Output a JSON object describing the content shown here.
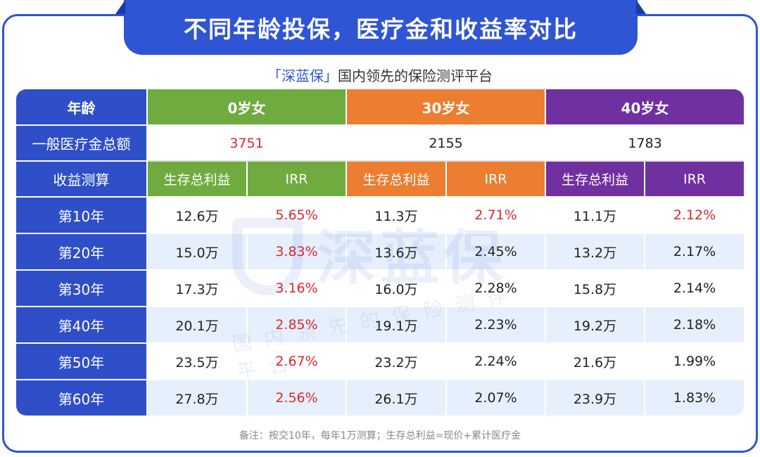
{
  "title": "不同年龄投保，医疗金和收益率对比",
  "subtitle": {
    "brand": "「深蓝保」",
    "text": "国内领先的保险测评平台"
  },
  "table": {
    "header": [
      "年龄",
      "0岁女",
      "30岁女",
      "40岁女"
    ],
    "medical_total": {
      "label": "一般医疗金总额",
      "values": [
        "3751",
        "2155",
        "1783"
      ]
    },
    "sub_header": {
      "label": "收益测算",
      "cols": [
        "生存总利益",
        "IRR",
        "生存总利益",
        "IRR",
        "生存总利益",
        "IRR"
      ]
    },
    "rows": [
      {
        "label": "第10年",
        "values": [
          "12.6万",
          "5.65%",
          "11.3万",
          "2.71%",
          "11.1万",
          "2.12%"
        ]
      },
      {
        "label": "第20年",
        "values": [
          "15.0万",
          "3.83%",
          "13.6万",
          "2.45%",
          "13.2万",
          "2.17%"
        ]
      },
      {
        "label": "第30年",
        "values": [
          "17.3万",
          "3.16%",
          "16.0万",
          "2.28%",
          "15.8万",
          "2.14%"
        ]
      },
      {
        "label": "第40年",
        "values": [
          "20.1万",
          "2.85%",
          "19.1万",
          "2.23%",
          "19.2万",
          "2.18%"
        ]
      },
      {
        "label": "第50年",
        "values": [
          "23.5万",
          "2.67%",
          "23.2万",
          "2.24%",
          "21.6万",
          "1.99%"
        ]
      },
      {
        "label": "第60年",
        "values": [
          "27.8万",
          "2.56%",
          "26.1万",
          "2.07%",
          "23.9万",
          "1.83%"
        ]
      }
    ]
  },
  "watermark": {
    "main": "深蓝保",
    "sub": "国内领先的保险测评平台"
  },
  "note": "备注：按交10年，每年1万测算；生存总利益=现价+累计医疗金",
  "colors": {
    "accent": "#2f55d4",
    "green": "#6fab3f",
    "orange": "#ec7d31",
    "purple": "#7030a0",
    "highlight_red": "#e0262b"
  }
}
